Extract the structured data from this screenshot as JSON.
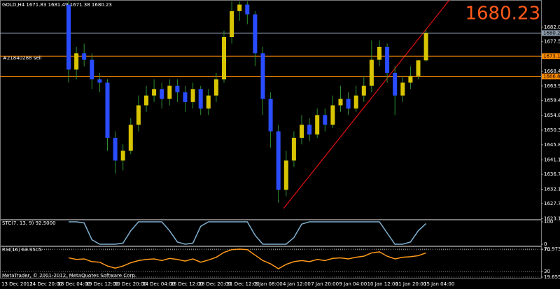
{
  "window": {
    "header": "GOLD,H4  1671.83 1681.49 1671.38 1680.23",
    "big_price": "1680.23",
    "order_label": "#21840288 sell",
    "footer": "MetaTrader, © 2001-2012, MetaQuotes Software Corp.",
    "time_labels": [
      "13 Dec 2012",
      "14 Dec 20:00",
      "18 Dec 04:00",
      "19 Dec 12:00",
      "20 Dec 20:00",
      "24 Dec 04:00",
      "26 Dec 12:00",
      "28 Dec 20:00",
      "31 Dec 12:00",
      "3 Jan 08:00",
      "4 Jan 12:00",
      "7 Jan 20:00",
      "9 Jan 04:00",
      "10 Jan 12:00",
      "11 Jan 20:00",
      "15 Jan 04:00"
    ]
  },
  "chart_data": [
    {
      "type": "candlestick",
      "up_color": "#d8c400",
      "down_color": "#2a4cff",
      "wick_color": "#2f8f2f",
      "open": [
        1689,
        1669,
        1674,
        1672,
        1666,
        1665,
        1648,
        1641,
        1644,
        1652,
        1658,
        1661,
        1663,
        1660,
        1664,
        1662,
        1659,
        1663,
        1657,
        1661,
        1666,
        1679,
        1687,
        1689,
        1686,
        1674,
        1660,
        1650,
        1632,
        1641,
        1648,
        1652,
        1649,
        1655,
        1652,
        1658,
        1660,
        1657,
        1661,
        1664,
        1672,
        1676,
        1668,
        1661,
        1665,
        1667,
        1671.83
      ],
      "high": [
        1690,
        1676,
        1677,
        1674,
        1668,
        1666,
        1650,
        1646,
        1654,
        1661,
        1664,
        1666,
        1665,
        1666,
        1666,
        1664,
        1665,
        1664,
        1663,
        1668,
        1681,
        1690,
        1690,
        1690,
        1687,
        1676,
        1662,
        1652,
        1644,
        1650,
        1655,
        1654,
        1657,
        1657,
        1661,
        1664,
        1662,
        1664,
        1667,
        1678,
        1678,
        1677,
        1670,
        1667,
        1670,
        1672,
        1681.49
      ],
      "low": [
        1665,
        1666,
        1670,
        1663,
        1662,
        1644,
        1637,
        1638,
        1643,
        1650,
        1656,
        1659,
        1657,
        1658,
        1659,
        1656,
        1657,
        1655,
        1655,
        1659,
        1665,
        1677,
        1684,
        1683,
        1670,
        1655,
        1645,
        1628,
        1630,
        1639,
        1646,
        1647,
        1648,
        1650,
        1651,
        1656,
        1655,
        1656,
        1659,
        1662,
        1670,
        1665,
        1655,
        1659,
        1663,
        1666,
        1671.38
      ],
      "close": [
        1669,
        1674,
        1672,
        1666,
        1665,
        1648,
        1641,
        1644,
        1652,
        1658,
        1661,
        1663,
        1660,
        1664,
        1662,
        1659,
        1663,
        1657,
        1661,
        1666,
        1679,
        1687,
        1689,
        1686,
        1674,
        1660,
        1650,
        1632,
        1641,
        1648,
        1652,
        1649,
        1655,
        1652,
        1658,
        1660,
        1657,
        1661,
        1664,
        1672,
        1676,
        1668,
        1661,
        1665,
        1667,
        1671.83,
        1680.23
      ],
      "ylim": [
        1623,
        1690.2
      ],
      "yticks": [
        1682.06,
        1677.56,
        1673.06,
        1668.46,
        1663.96,
        1659.46,
        1654.86,
        1650.36,
        1645.86,
        1641.16,
        1636.76,
        1632.16,
        1627.76,
        1623.16
      ],
      "levels": [
        {
          "value": 1680.23,
          "color": "#8a9aaa"
        },
        {
          "value": 1673.13,
          "color": "#ff8c00"
        },
        {
          "value": 1666.87,
          "color": "#ff8c00"
        }
      ]
    },
    {
      "type": "line",
      "label": "STC(7, 13, 9) 92.5000",
      "color": "#7fb0d0",
      "values": [
        100,
        100,
        95,
        20,
        0,
        0,
        0,
        5,
        60,
        100,
        100,
        100,
        100,
        60,
        10,
        0,
        5,
        80,
        100,
        100,
        100,
        100,
        100,
        100,
        40,
        0,
        0,
        0,
        0,
        30,
        90,
        100,
        100,
        100,
        100,
        100,
        100,
        100,
        100,
        100,
        100,
        50,
        0,
        0,
        10,
        60,
        92.5
      ],
      "ylim": [
        0,
        100
      ],
      "yticks": [
        0,
        100
      ]
    },
    {
      "type": "line",
      "label": "RSI(16) 63.9505",
      "color": "#ff9a1a",
      "values": [
        55,
        52,
        53,
        48,
        47,
        40,
        36,
        40,
        46,
        50,
        52,
        53,
        50,
        54,
        52,
        49,
        53,
        47,
        51,
        56,
        65,
        70,
        71,
        70,
        60,
        50,
        44,
        35,
        43,
        48,
        50,
        48,
        52,
        50,
        54,
        55,
        53,
        56,
        58,
        64,
        66,
        58,
        53,
        56,
        57,
        59,
        63.9505
      ],
      "ylim": [
        19.6558,
        70.9737
      ],
      "yticks": [
        19.6558,
        30,
        70,
        70.9737
      ]
    }
  ]
}
